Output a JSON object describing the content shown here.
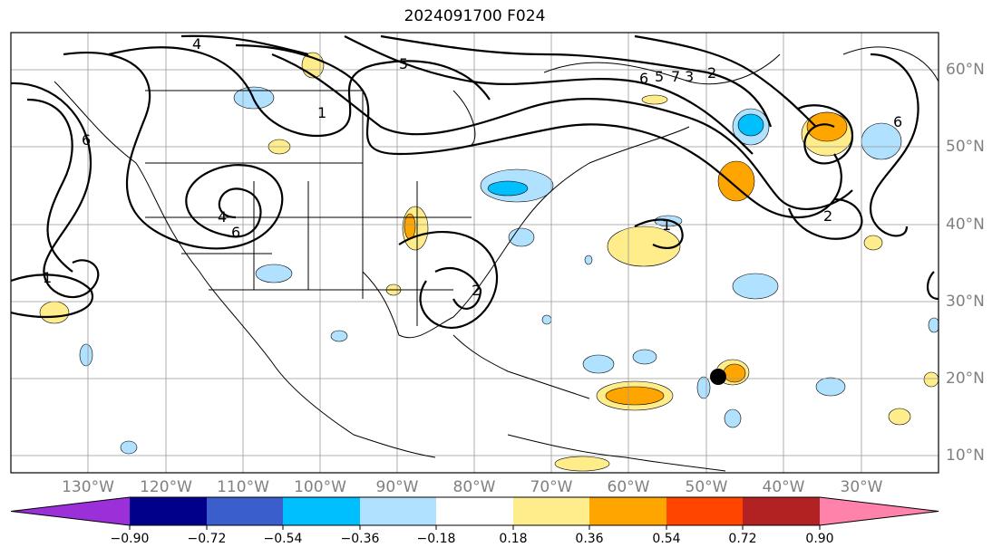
{
  "title": "2024091700 F024",
  "lat_labels": [
    "60°N",
    "50°N",
    "40°N",
    "30°N",
    "20°N",
    "10°N"
  ],
  "lon_labels": [
    "130°W",
    "120°W",
    "110°W",
    "100°W",
    "90°W",
    "80°W",
    "70°W",
    "60°W",
    "50°W",
    "40°W",
    "30°W"
  ],
  "contour_labels": [
    "1",
    "2",
    "3",
    "4",
    "5",
    "6",
    "7"
  ],
  "colorbar": {
    "ticks": [
      "−0.90",
      "−0.72",
      "−0.54",
      "−0.36",
      "−0.18",
      "0.18",
      "0.36",
      "0.54",
      "0.72",
      "0.90"
    ],
    "colors": [
      "#9b30d9",
      "#00008b",
      "#3a5fcd",
      "#00bfff",
      "#b0e2ff",
      "#ffffff",
      "#ffec8b",
      "#ffa500",
      "#ff4500",
      "#b22222",
      "#ff82ab"
    ]
  },
  "fill_colors": {
    "light_blue": "#b0e2ff",
    "blue": "#00bfff",
    "yellow": "#ffec8b",
    "orange": "#ffa500"
  },
  "marker_color": "#000000"
}
